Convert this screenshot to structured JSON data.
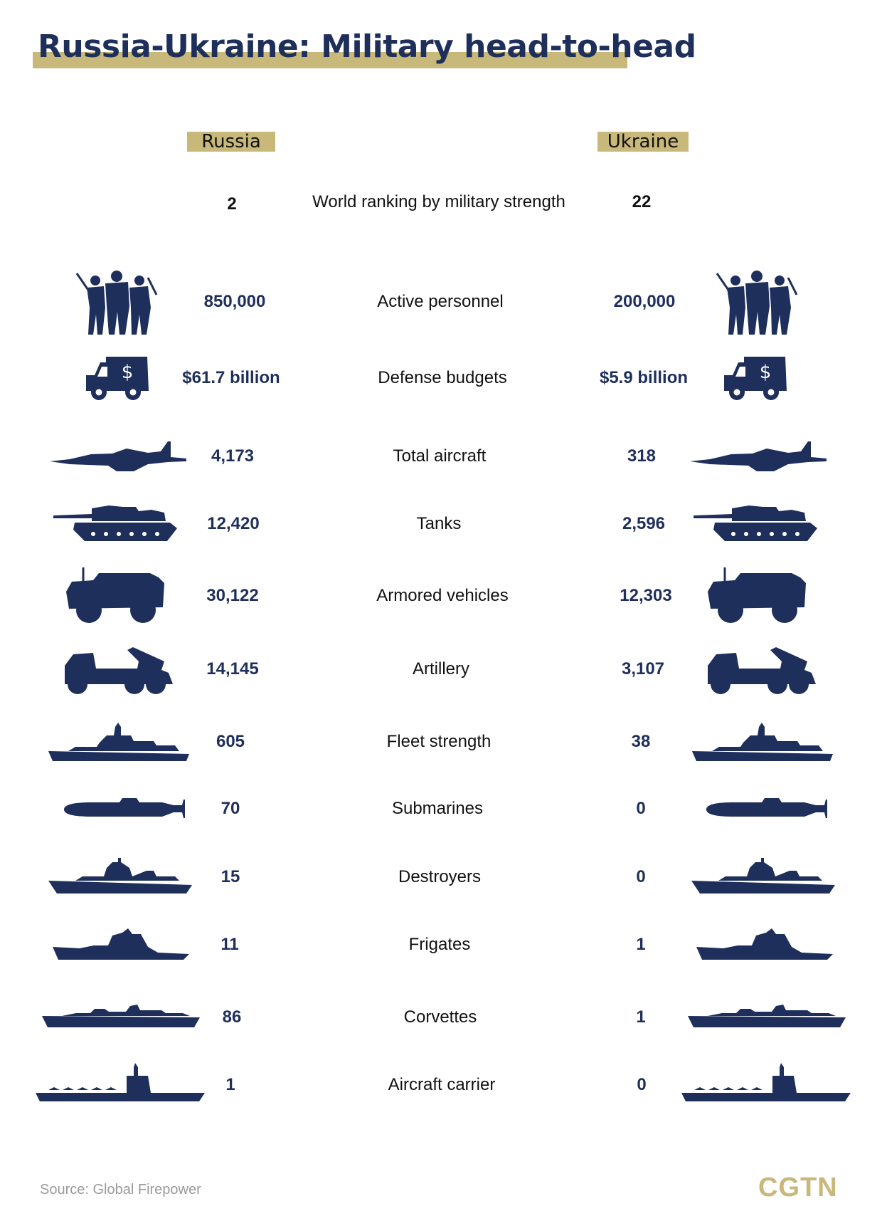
{
  "header": {
    "title": "Russia-Ukraine: Military head-to-head",
    "russia_label": "Russia",
    "ukraine_label": "Ukraine"
  },
  "colors": {
    "accent_gold": "#c8b87a",
    "navy": "#1e2f5c"
  },
  "ranking": {
    "russia": "2",
    "label": "World ranking by military strength",
    "ukraine": "22"
  },
  "rows": [
    {
      "icon": "soldiers-icon",
      "label": "Active personnel",
      "russia": "850,000",
      "ukraine": "200,000"
    },
    {
      "icon": "money-truck-icon",
      "label": "Defense budgets",
      "russia": "$61.7 billion",
      "ukraine": "$5.9 billion"
    },
    {
      "icon": "fighter-jet-icon",
      "label": "Total aircraft",
      "russia": "4,173",
      "ukraine": "318"
    },
    {
      "icon": "tank-icon",
      "label": "Tanks",
      "russia": "12,420",
      "ukraine": "2,596"
    },
    {
      "icon": "armored-vehicle-icon",
      "label": "Armored vehicles",
      "russia": "30,122",
      "ukraine": "12,303"
    },
    {
      "icon": "rocket-launcher-truck-icon",
      "label": "Artillery",
      "russia": "14,145",
      "ukraine": "3,107"
    },
    {
      "icon": "warship-icon",
      "label": "Fleet strength",
      "russia": "605",
      "ukraine": "38"
    },
    {
      "icon": "submarine-icon",
      "label": "Submarines",
      "russia": "70",
      "ukraine": "0"
    },
    {
      "icon": "destroyer-icon",
      "label": "Destroyers",
      "russia": "15",
      "ukraine": "0"
    },
    {
      "icon": "frigate-icon",
      "label": "Frigates",
      "russia": "11",
      "ukraine": "1"
    },
    {
      "icon": "corvette-icon",
      "label": "Corvettes",
      "russia": "86",
      "ukraine": "1"
    },
    {
      "icon": "aircraft-carrier-icon",
      "label": "Aircraft carrier",
      "russia": "1",
      "ukraine": "0"
    }
  ],
  "footer": {
    "source": "Source: Global Firepower",
    "brand": "CGTN"
  }
}
